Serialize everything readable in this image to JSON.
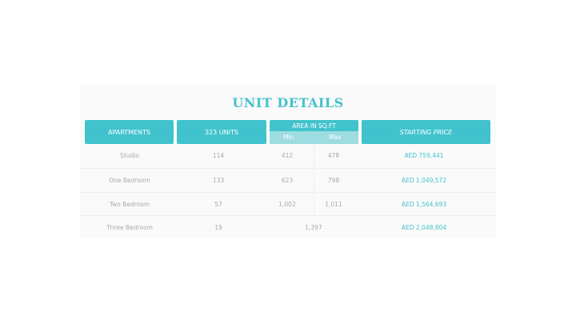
{
  "title": "UNIT DETAILS",
  "headers": {
    "apartments": "APARTMENTS",
    "units": "323 UNITS",
    "area": "AREA IN SQ.FT",
    "min": "Min",
    "max": "Max",
    "price": "STARTING PRICE"
  },
  "rows": [
    {
      "type": "Studio",
      "units": "114",
      "min": "412",
      "max": "478",
      "price": "AED 759,441"
    },
    {
      "type": "One Bedroom",
      "units": "133",
      "min": "623",
      "max": "798",
      "price": "AED 1,049,572"
    },
    {
      "type": "Two Bedroom",
      "units": "57",
      "min": "1,002",
      "max": "1,011",
      "price": "AED 1,564,693"
    },
    {
      "type": "Three Bedroom",
      "units": "19",
      "area": "1,397",
      "price": "AED 2,048,804"
    }
  ],
  "colors": {
    "accent": "#41c3cd",
    "accent_light": "#9ddce1"
  }
}
